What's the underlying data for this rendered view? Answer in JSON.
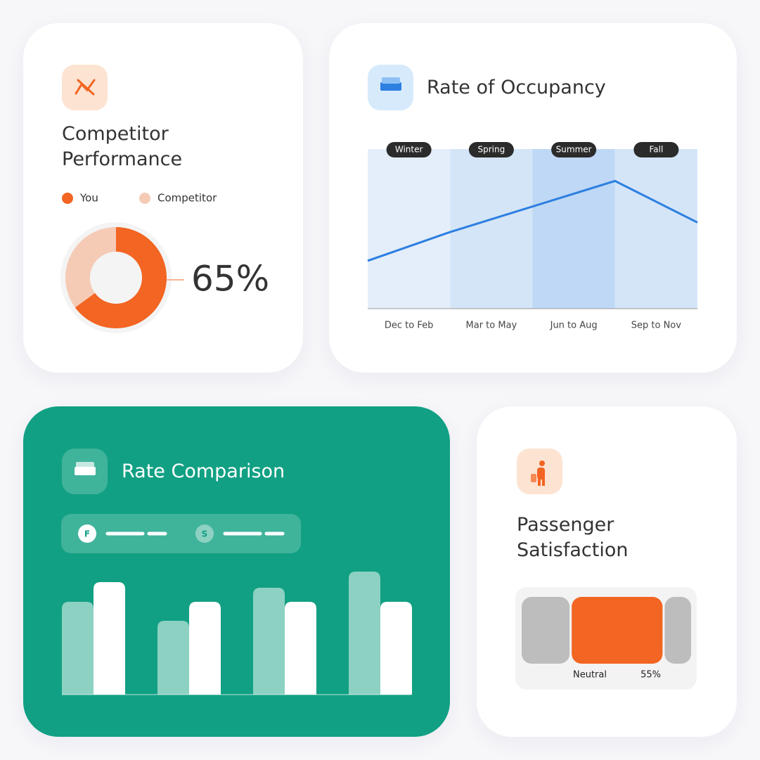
{
  "chart_data": [
    {
      "type": "pie",
      "title": "Competitor Performance",
      "categories": [
        "You",
        "Competitor"
      ],
      "values": [
        65,
        35
      ],
      "value_labels": [
        "65%",
        null
      ],
      "colors": [
        "#f26522",
        "#f5cbb6"
      ]
    },
    {
      "type": "line",
      "title": "Rate of Occupancy",
      "categories": [
        "Dec to Feb",
        "Mar to May",
        "Jun to Aug",
        "Sep to Nov"
      ],
      "seasons": [
        "Winter",
        "Spring",
        "Summer",
        "Fall"
      ],
      "band_colors": [
        "#e4eefb",
        "#d4e5f8",
        "#bed8f5",
        "#d4e5f8"
      ],
      "x": [
        0,
        1,
        2,
        3,
        4
      ],
      "values": [
        30,
        48,
        64,
        80,
        54
      ],
      "xlim": [
        0,
        4
      ],
      "ylim": [
        0,
        100
      ],
      "color": "#2d7fe0"
    },
    {
      "type": "bar",
      "title": "Rate Comparison",
      "categories": [
        null,
        null,
        null,
        null
      ],
      "series": [
        {
          "name": "F",
          "color": "#ffffff",
          "values": [
            160,
            132,
            132,
            132
          ]
        },
        {
          "name": "S",
          "color": "#8dd1c2",
          "values": [
            132,
            105,
            152,
            175
          ]
        }
      ],
      "ylim": [
        0,
        200
      ]
    },
    {
      "type": "stacked",
      "title": "Passenger Satisfaction",
      "categories": [
        null,
        "Neutral",
        null
      ],
      "values": [
        29,
        55,
        16
      ],
      "value_labels": [
        null,
        "55%",
        null
      ],
      "colors": [
        "#bdbdbd",
        "#f26522",
        "#bdbdbd"
      ]
    }
  ]
}
